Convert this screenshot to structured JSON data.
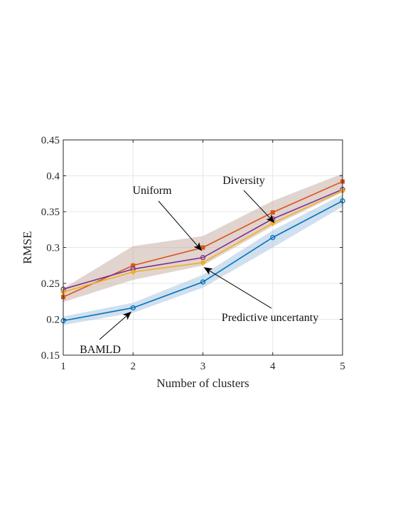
{
  "chart_data": {
    "type": "line",
    "xlabel": "Number of clusters",
    "ylabel": "RMSE",
    "xlim": [
      1,
      5
    ],
    "ylim": [
      0.15,
      0.45
    ],
    "x": [
      1,
      2,
      3,
      4,
      5
    ],
    "x_ticks": [
      "1",
      "2",
      "3",
      "4",
      "5"
    ],
    "y_ticks": [
      "0.15",
      "0.2",
      "0.25",
      "0.3",
      "0.35",
      "0.4",
      "0.45"
    ],
    "grid": true,
    "legend": "none",
    "series": [
      {
        "name": "Uniform",
        "marker": "square",
        "color": "#D95319",
        "values": [
          0.231,
          0.275,
          0.3,
          0.349,
          0.392
        ],
        "band_color": "#C9AFA6",
        "band_low": [
          0.224,
          0.255,
          0.275,
          0.33,
          0.377
        ],
        "band_high": [
          0.243,
          0.302,
          0.316,
          0.365,
          0.403
        ]
      },
      {
        "name": "Diversity",
        "marker": "circle",
        "color": "#7E2F8E",
        "values": [
          0.242,
          0.27,
          0.286,
          0.34,
          0.381
        ]
      },
      {
        "name": "Predictive uncertanty",
        "marker": "diamond",
        "color": "#EDB120",
        "values": [
          0.238,
          0.266,
          0.279,
          0.334,
          0.379
        ]
      },
      {
        "name": "BAMLD",
        "marker": "circle",
        "color": "#0072BD",
        "values": [
          0.198,
          0.216,
          0.252,
          0.314,
          0.365
        ],
        "band_color": "#A9C6E0",
        "band_low": [
          0.192,
          0.209,
          0.244,
          0.3,
          0.357
        ],
        "band_high": [
          0.204,
          0.223,
          0.262,
          0.324,
          0.374
        ]
      }
    ],
    "annotations": [
      {
        "text": "Uniform",
        "target_x": 3,
        "target_y": 0.297
      },
      {
        "text": "Diversity",
        "target_x": 4,
        "target_y": 0.337
      },
      {
        "text": "Predictive uncertanty",
        "target_x": 3,
        "target_y": 0.275
      },
      {
        "text": "BAMLD",
        "target_x": 2,
        "target_y": 0.213
      }
    ]
  }
}
